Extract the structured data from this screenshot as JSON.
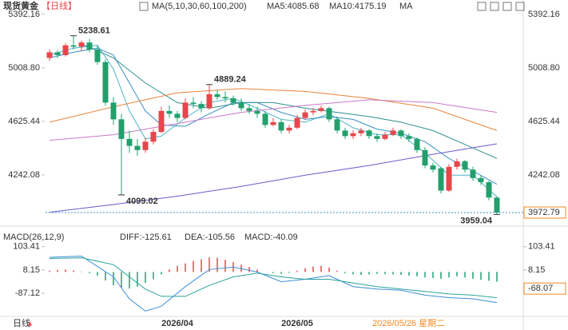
{
  "chart_data": [
    {
      "type": "candlestick",
      "title": "现货黄金",
      "period": "【日线】",
      "indicator": "MA(5,10,30,60,100,200)",
      "categories": [
        null,
        null,
        null,
        null,
        null,
        null,
        null,
        null,
        null,
        null,
        null,
        null,
        null,
        null,
        null,
        null,
        "2026/04",
        null,
        null,
        null,
        null,
        null,
        null,
        null,
        null,
        null,
        null,
        null,
        null,
        null,
        null,
        "2026/05",
        null,
        null,
        null,
        null,
        null,
        null,
        null,
        null,
        null,
        null,
        null,
        null,
        null,
        null,
        null,
        null,
        null,
        null,
        null,
        null,
        null,
        null,
        null,
        null,
        null
      ],
      "open": [
        5080,
        5120,
        5100,
        5170,
        5160,
        5190,
        5140,
        5050,
        4760,
        4640,
        4500,
        4450,
        4420,
        4480,
        4550,
        4700,
        4680,
        4650,
        4760,
        4750,
        4720,
        4820,
        4800,
        4790,
        4760,
        4720,
        4700,
        4680,
        4600,
        4620,
        4560,
        4580,
        4650,
        4690,
        4700,
        4720,
        4640,
        4560,
        4520,
        4540,
        4560,
        4520,
        4500,
        4530,
        4560,
        4520,
        4500,
        4420,
        4310,
        4290,
        4130,
        4300,
        4340,
        4280,
        4220,
        4190,
        4080
      ],
      "high": [
        5140,
        5135,
        5185,
        5238.61,
        5205,
        5215,
        5170,
        5070,
        4800,
        4680,
        4560,
        4500,
        4510,
        4570,
        4730,
        4740,
        4700,
        4790,
        4800,
        4770,
        4889.24,
        4850,
        4840,
        4810,
        4790,
        4750,
        4730,
        4700,
        4650,
        4640,
        4600,
        4670,
        4710,
        4720,
        4740,
        4730,
        4660,
        4580,
        4560,
        4580,
        4570,
        4540,
        4550,
        4580,
        4570,
        4540,
        4510,
        4440,
        4330,
        4300,
        4320,
        4360,
        4350,
        4300,
        4240,
        4200,
        4090
      ],
      "low": [
        5060,
        5080,
        5090,
        5140,
        5130,
        5120,
        5030,
        4740,
        4600,
        4099.02,
        4400,
        4380,
        4400,
        4460,
        4540,
        4650,
        4620,
        4640,
        4720,
        4690,
        4710,
        4780,
        4760,
        4740,
        4700,
        4680,
        4650,
        4580,
        4590,
        4540,
        4540,
        4570,
        4640,
        4670,
        4690,
        4620,
        4540,
        4500,
        4500,
        4520,
        4500,
        4480,
        4490,
        4520,
        4500,
        4480,
        4400,
        4290,
        4260,
        4110,
        4120,
        4280,
        4260,
        4200,
        4170,
        4060,
        3959.04
      ],
      "close": [
        5120,
        5100,
        5170,
        5160,
        5190,
        5140,
        5050,
        4760,
        4640,
        4500,
        4450,
        4420,
        4480,
        4550,
        4700,
        4680,
        4650,
        4760,
        4750,
        4720,
        4820,
        4800,
        4790,
        4760,
        4720,
        4700,
        4680,
        4600,
        4620,
        4560,
        4580,
        4650,
        4690,
        4700,
        4720,
        4640,
        4560,
        4520,
        4540,
        4560,
        4520,
        4500,
        4530,
        4560,
        4520,
        4500,
        4420,
        4310,
        4280,
        4130,
        4300,
        4340,
        4280,
        4220,
        4190,
        4080,
        3972.79
      ],
      "up_color": "#e5474b",
      "down_color": "#21a06c",
      "series": [
        {
          "name": "MA5:4085.68",
          "color": "#4db6c9",
          "x": [
            0,
            3,
            6,
            8,
            10,
            12,
            14,
            17,
            20,
            23,
            26,
            29,
            32,
            35,
            38,
            41,
            44,
            47,
            50,
            53,
            56
          ],
          "values": [
            5100,
            5150,
            5170,
            5000,
            4700,
            4500,
            4520,
            4650,
            4760,
            4790,
            4720,
            4640,
            4620,
            4680,
            4580,
            4530,
            4530,
            4400,
            4240,
            4240,
            4085.68
          ]
        },
        {
          "name": "MA10:4175.19",
          "color": "#3b8fc4",
          "x": [
            0,
            3,
            6,
            8,
            10,
            12,
            14,
            17,
            20,
            23,
            26,
            29,
            32,
            35,
            38,
            41,
            44,
            47,
            50,
            53,
            56
          ],
          "values": [
            5080,
            5120,
            5150,
            5100,
            4900,
            4700,
            4600,
            4590,
            4680,
            4760,
            4760,
            4690,
            4640,
            4660,
            4640,
            4570,
            4540,
            4480,
            4360,
            4270,
            4175.19
          ]
        },
        {
          "name": "MA",
          "color": "#2f8f8f",
          "x": [
            4,
            8,
            12,
            16,
            20,
            24,
            28,
            32,
            36,
            40,
            44,
            48,
            52,
            56
          ],
          "values": [
            5180,
            5080,
            4900,
            4760,
            4720,
            4760,
            4760,
            4720,
            4690,
            4660,
            4620,
            4560,
            4460,
            4360
          ]
        },
        {
          "color": "#e8843c",
          "x": [
            0,
            8,
            16,
            24,
            32,
            40,
            48,
            56
          ],
          "values": [
            4620,
            4730,
            4830,
            4860,
            4840,
            4790,
            4720,
            4560
          ]
        },
        {
          "color": "#c879c8",
          "x": [
            0,
            8,
            16,
            24,
            32,
            40,
            48,
            56
          ],
          "values": [
            4490,
            4530,
            4610,
            4690,
            4740,
            4780,
            4760,
            4690
          ]
        },
        {
          "color": "#6a5acd",
          "x": [
            0,
            8,
            16,
            24,
            32,
            40,
            48,
            56
          ],
          "values": [
            3975,
            4030,
            4090,
            4160,
            4240,
            4310,
            4390,
            4465
          ]
        }
      ],
      "annotations": [
        5238.61,
        4889.24,
        4099.02,
        3959.04
      ],
      "last": 3972.79,
      "last_color": "#f08a24",
      "ylim": [
        3950,
        5420
      ],
      "yticks": [
        5392.16,
        {
          "value": 5008.8,
          "label": "5008.80"
        },
        4625.44,
        4242.08
      ],
      "cursor_label": "2026/05/26 星期二",
      "footer": "日线"
    },
    {
      "type": "macd",
      "title": "MACD(26,12,9)",
      "histogram": {
        "name": "MACD:-40.09",
        "up_color": "#e5474b",
        "down_color": "#21a06c",
        "values": [
          5,
          8,
          10,
          6,
          2,
          -5,
          -15,
          -35,
          -55,
          -65,
          -68,
          -60,
          -45,
          -30,
          -10,
          10,
          25,
          35,
          45,
          52,
          60,
          58,
          50,
          40,
          30,
          20,
          10,
          0,
          -5,
          -8,
          -4,
          5,
          15,
          22,
          25,
          18,
          5,
          -5,
          -10,
          -12,
          -10,
          -8,
          -9,
          -10,
          -12,
          -15,
          -18,
          -22,
          -25,
          -28,
          -22,
          -18,
          -22,
          -28,
          -32,
          -36,
          -40.09
        ]
      },
      "series": [
        {
          "name": "DIFF:-125.61",
          "color": "#3d8fd8",
          "x": [
            0,
            4,
            8,
            10,
            12,
            14,
            17,
            20,
            23,
            26,
            29,
            32,
            35,
            38,
            41,
            44,
            47,
            50,
            53,
            56
          ],
          "values": [
            60,
            65,
            -20,
            -110,
            -160,
            -140,
            -60,
            10,
            20,
            0,
            -40,
            -30,
            -15,
            -60,
            -70,
            -75,
            -95,
            -105,
            -110,
            -125.61
          ]
        },
        {
          "name": "DEA:-105.56",
          "color": "#2aa39a",
          "x": [
            0,
            4,
            8,
            10,
            12,
            14,
            17,
            20,
            23,
            26,
            29,
            32,
            35,
            38,
            41,
            44,
            47,
            50,
            53,
            56
          ],
          "values": [
            55,
            58,
            30,
            -20,
            -70,
            -100,
            -100,
            -55,
            -20,
            -5,
            -20,
            -30,
            -30,
            -45,
            -60,
            -70,
            -80,
            -90,
            -95,
            -105.56
          ]
        }
      ],
      "ylim": [
        -195,
        145
      ],
      "yticks": [
        103.41,
        8.15,
        -87.12
      ],
      "y2ticks": [
        103.41,
        8.15
      ],
      "cursor_value": -68.07
    }
  ]
}
